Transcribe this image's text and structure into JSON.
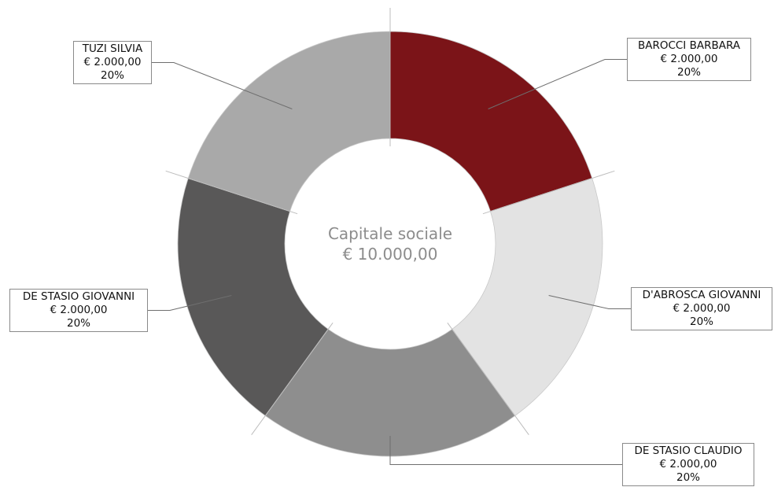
{
  "chart_data": {
    "type": "donut",
    "center_title": "Capitale sociale",
    "center_value": "€ 10.000,00",
    "slices": [
      {
        "name": "BAROCCI BARBARA",
        "amount_label": "€ 2.000,00",
        "value": 2000,
        "percent_label": "20%",
        "color": "#7b1418"
      },
      {
        "name": "D'ABROSCA GIOVANNI",
        "amount_label": "€ 2.000,00",
        "value": 2000,
        "percent_label": "20%",
        "color": "#e3e3e3"
      },
      {
        "name": "DE STASIO CLAUDIO",
        "amount_label": "€ 2.000,00",
        "value": 2000,
        "percent_label": "20%",
        "color": "#8e8e8e"
      },
      {
        "name": "DE STASIO GIOVANNI",
        "amount_label": "€ 2.000,00",
        "value": 2000,
        "percent_label": "20%",
        "color": "#595858"
      },
      {
        "name": "TUZI SILVIA",
        "amount_label": "€ 2.000,00",
        "value": 2000,
        "percent_label": "20%",
        "color": "#a9a9a9"
      }
    ]
  }
}
